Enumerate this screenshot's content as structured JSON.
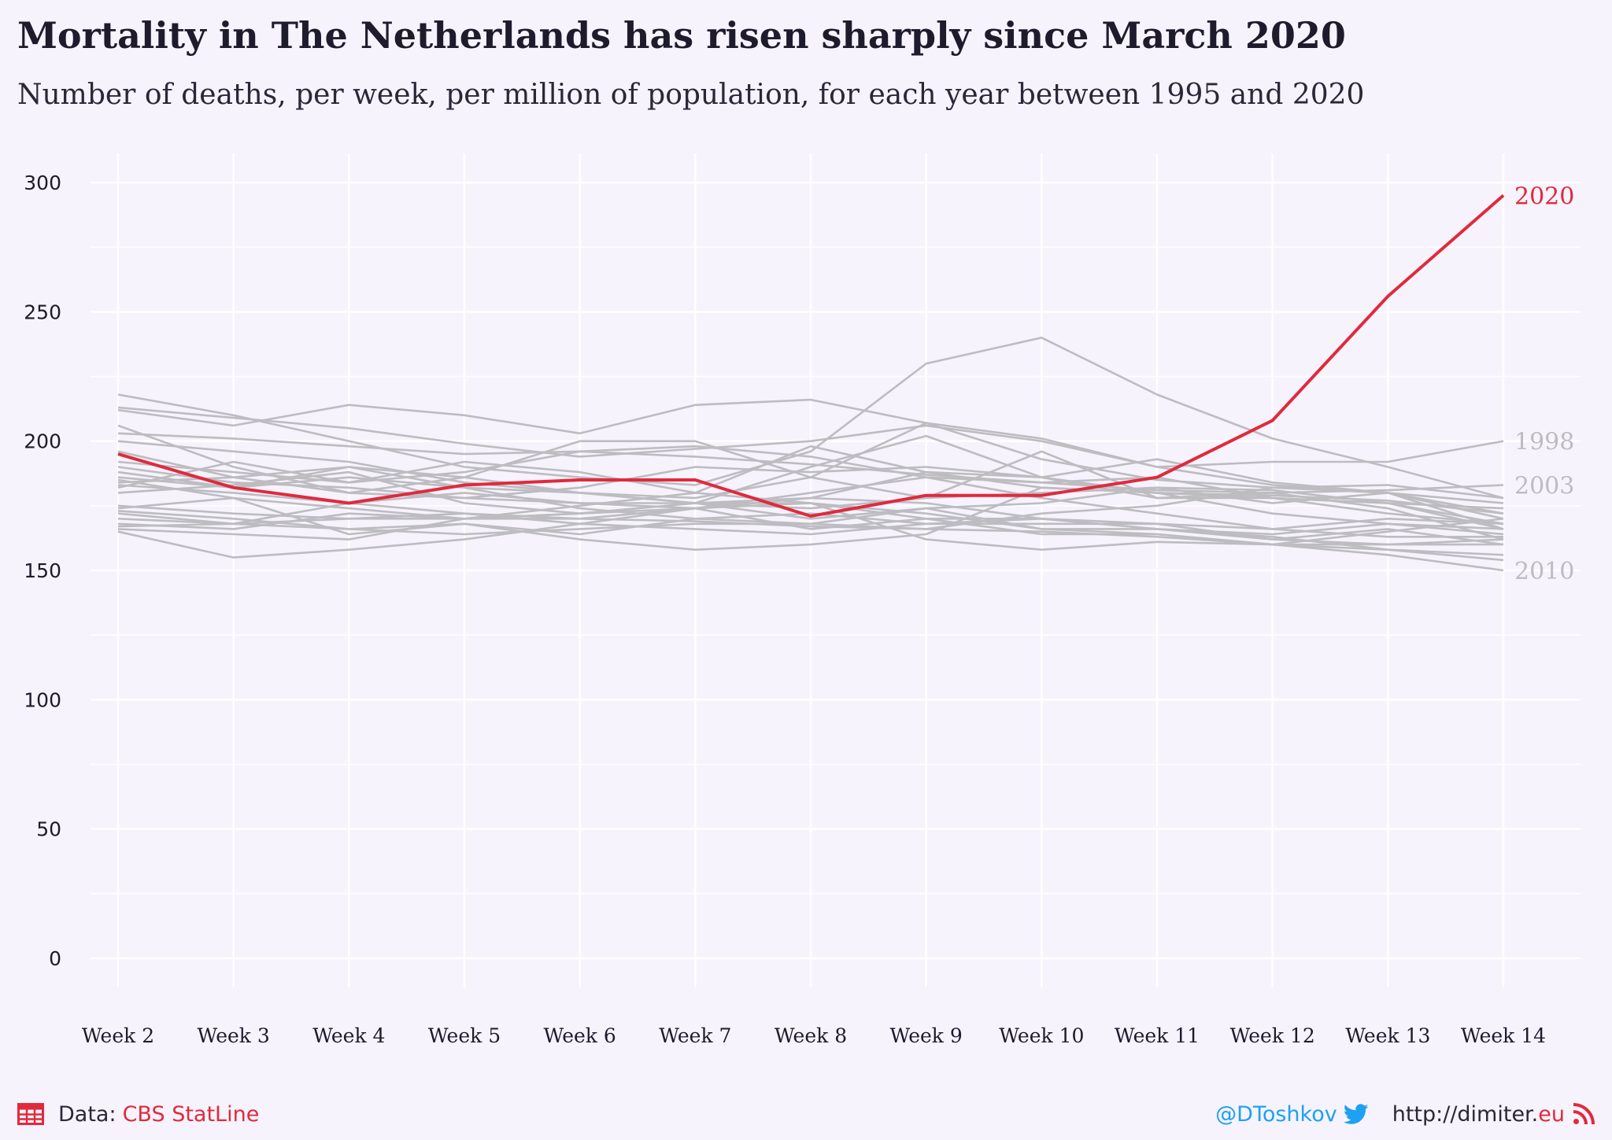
{
  "header": {
    "title": "Mortality in The Netherlands has risen sharply since March 2020",
    "subtitle": "Number of deaths, per week, per million of population, for each year between 1995 and 2020"
  },
  "footer": {
    "data_prefix": "Data:",
    "source_name": "CBS StatLine",
    "twitter_handle": "@DToshkov",
    "site_main": "http://dimiter.",
    "site_tld": "eu",
    "icons": [
      "table-icon",
      "twitter-bird-icon",
      "rss-feed-icon"
    ]
  },
  "colors": {
    "background": "#f6f3fd",
    "highlight": "#e02a3c",
    "other_years": "#bdbcc1",
    "grid": "#ffffff",
    "twitter": "#1da1f2"
  },
  "chart_data": {
    "type": "line",
    "title": "Mortality in The Netherlands has risen sharply since March 2020",
    "subtitle": "Number of deaths, per week, per million of population, for each year between 1995 and 2020",
    "xlabel": "",
    "ylabel": "",
    "categories": [
      "Week 2",
      "Week 3",
      "Week 4",
      "Week 5",
      "Week 6",
      "Week 7",
      "Week 8",
      "Week 9",
      "Week 10",
      "Week 11",
      "Week 12",
      "Week 13",
      "Week 14"
    ],
    "ylim": [
      0,
      300
    ],
    "yticks": [
      0,
      50,
      100,
      150,
      200,
      250,
      300
    ],
    "grid": true,
    "legend": "none",
    "series": [
      {
        "name": "2020",
        "highlight": true,
        "values": [
          195,
          182,
          176,
          183,
          185,
          185,
          171,
          179,
          179,
          186,
          208,
          256,
          295
        ]
      },
      {
        "name": "1998",
        "end_label": true,
        "values": [
          213,
          209,
          205,
          199,
          194,
          197,
          200,
          206,
          200,
          190,
          192,
          192,
          200
        ]
      },
      {
        "name": "2003",
        "end_label": true,
        "values": [
          203,
          201,
          198,
          195,
          196,
          194,
          191,
          187,
          184,
          181,
          180,
          181,
          183
        ]
      },
      {
        "name": "2010",
        "end_label": true,
        "values": [
          183,
          180,
          176,
          172,
          170,
          169,
          167,
          166,
          165,
          163,
          160,
          156,
          150
        ]
      },
      {
        "name": "",
        "values": [
          218,
          210,
          200,
          190,
          186,
          183,
          196,
          230,
          240,
          218,
          201,
          190,
          178
        ]
      },
      {
        "name": "",
        "values": [
          212,
          206,
          214,
          210,
          203,
          214,
          216,
          207,
          193,
          185,
          182,
          180,
          176
        ]
      },
      {
        "name": "",
        "values": [
          206,
          190,
          180,
          186,
          200,
          200,
          186,
          207,
          201,
          190,
          183,
          180,
          170
        ]
      },
      {
        "name": "",
        "values": [
          200,
          196,
          192,
          184,
          180,
          176,
          190,
          202,
          186,
          180,
          178,
          176,
          168
        ]
      },
      {
        "name": "",
        "values": [
          196,
          186,
          180,
          178,
          176,
          176,
          176,
          172,
          166,
          166,
          163,
          158,
          154
        ]
      },
      {
        "name": "",
        "values": [
          192,
          188,
          184,
          188,
          196,
          198,
          194,
          186,
          184,
          186,
          178,
          172,
          168
        ]
      },
      {
        "name": "",
        "values": [
          188,
          182,
          190,
          182,
          174,
          170,
          168,
          166,
          172,
          175,
          182,
          183,
          178
        ]
      },
      {
        "name": "",
        "values": [
          186,
          182,
          186,
          182,
          180,
          178,
          186,
          178,
          196,
          178,
          178,
          176,
          174
        ]
      },
      {
        "name": "",
        "values": [
          184,
          186,
          190,
          186,
          180,
          176,
          174,
          178,
          180,
          182,
          181,
          176,
          166
        ]
      },
      {
        "name": "",
        "values": [
          182,
          192,
          184,
          192,
          188,
          180,
          198,
          188,
          182,
          180,
          179,
          177,
          172
        ]
      },
      {
        "name": "",
        "values": [
          180,
          183,
          188,
          176,
          172,
          174,
          178,
          188,
          186,
          193,
          184,
          180,
          166
        ]
      },
      {
        "name": "",
        "values": [
          175,
          172,
          170,
          172,
          168,
          174,
          180,
          186,
          178,
          172,
          166,
          163,
          163
        ]
      },
      {
        "name": "",
        "values": [
          174,
          178,
          174,
          170,
          172,
          176,
          170,
          174,
          166,
          164,
          160,
          158,
          156
        ]
      },
      {
        "name": "",
        "values": [
          173,
          170,
          166,
          168,
          164,
          170,
          172,
          168,
          168,
          168,
          166,
          170,
          168
        ]
      },
      {
        "name": "",
        "values": [
          172,
          168,
          176,
          180,
          176,
          174,
          176,
          170,
          170,
          166,
          162,
          160,
          162
        ]
      },
      {
        "name": "",
        "values": [
          170,
          168,
          166,
          164,
          166,
          168,
          168,
          174,
          176,
          182,
          176,
          180,
          172
        ]
      },
      {
        "name": "",
        "values": [
          168,
          166,
          172,
          170,
          170,
          174,
          166,
          170,
          164,
          164,
          160,
          165,
          170
        ]
      },
      {
        "name": "",
        "values": [
          167,
          168,
          170,
          170,
          172,
          176,
          178,
          176,
          170,
          168,
          162,
          166,
          160
        ]
      },
      {
        "name": "",
        "values": [
          166,
          164,
          162,
          170,
          175,
          180,
          176,
          162,
          158,
          161,
          160,
          160,
          160
        ]
      },
      {
        "name": "",
        "values": [
          165,
          155,
          158,
          162,
          168,
          166,
          164,
          168,
          170,
          166,
          164,
          168,
          166
        ]
      },
      {
        "name": "",
        "values": [
          185,
          178,
          164,
          168,
          162,
          158,
          160,
          164,
          182,
          180,
          172,
          168,
          164
        ]
      },
      {
        "name": "",
        "values": [
          190,
          184,
          182,
          178,
          182,
          190,
          188,
          190,
          186,
          178,
          180,
          174,
          162
        ]
      }
    ]
  }
}
